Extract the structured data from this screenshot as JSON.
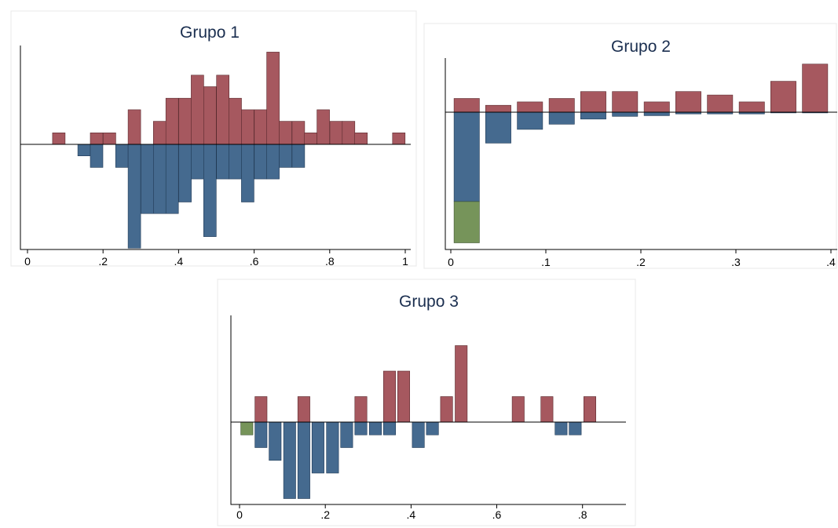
{
  "chart_data": [
    {
      "type": "bar",
      "title": "Grupo 1",
      "xlabel": "",
      "ylabel": "",
      "xlim": [
        0,
        1
      ],
      "x_ticks": [
        "0",
        ".2",
        ".4",
        ".6",
        ".8",
        "1"
      ],
      "x_tick_values": [
        0,
        0.2,
        0.4,
        0.6,
        0.8,
        1
      ],
      "bin_width": 0.0333,
      "colors": {
        "above": "#a6585f",
        "below": "#456a8f",
        "extra": "#76945a"
      },
      "above": [
        {
          "x": 0.083,
          "v": 1
        },
        {
          "x": 0.183,
          "v": 1
        },
        {
          "x": 0.217,
          "v": 1
        },
        {
          "x": 0.283,
          "v": 3
        },
        {
          "x": 0.35,
          "v": 2
        },
        {
          "x": 0.383,
          "v": 4
        },
        {
          "x": 0.417,
          "v": 4
        },
        {
          "x": 0.45,
          "v": 6
        },
        {
          "x": 0.483,
          "v": 5
        },
        {
          "x": 0.517,
          "v": 6
        },
        {
          "x": 0.55,
          "v": 4
        },
        {
          "x": 0.583,
          "v": 3
        },
        {
          "x": 0.617,
          "v": 3
        },
        {
          "x": 0.65,
          "v": 8
        },
        {
          "x": 0.683,
          "v": 2
        },
        {
          "x": 0.717,
          "v": 2
        },
        {
          "x": 0.75,
          "v": 1
        },
        {
          "x": 0.783,
          "v": 3
        },
        {
          "x": 0.817,
          "v": 2
        },
        {
          "x": 0.85,
          "v": 2
        },
        {
          "x": 0.883,
          "v": 1
        },
        {
          "x": 0.983,
          "v": 1
        }
      ],
      "below": [
        {
          "x": 0.15,
          "v": 1
        },
        {
          "x": 0.183,
          "v": 2
        },
        {
          "x": 0.25,
          "v": 2
        },
        {
          "x": 0.283,
          "v": 9
        },
        {
          "x": 0.317,
          "v": 6
        },
        {
          "x": 0.35,
          "v": 6
        },
        {
          "x": 0.383,
          "v": 6
        },
        {
          "x": 0.417,
          "v": 5
        },
        {
          "x": 0.45,
          "v": 3
        },
        {
          "x": 0.483,
          "v": 8
        },
        {
          "x": 0.517,
          "v": 3
        },
        {
          "x": 0.55,
          "v": 3
        },
        {
          "x": 0.583,
          "v": 5
        },
        {
          "x": 0.617,
          "v": 3
        },
        {
          "x": 0.65,
          "v": 3
        },
        {
          "x": 0.683,
          "v": 2
        },
        {
          "x": 0.717,
          "v": 2
        }
      ],
      "extra": []
    },
    {
      "type": "bar",
      "title": "Grupo 2",
      "xlabel": "",
      "ylabel": "",
      "xlim": [
        0,
        0.4
      ],
      "x_ticks": [
        "0",
        ".1",
        ".2",
        ".3",
        ".4"
      ],
      "x_tick_values": [
        0,
        0.1,
        0.2,
        0.3,
        0.4
      ],
      "bin_width": 0.0267,
      "colors": {
        "above": "#a6585f",
        "below": "#456a8f",
        "extra": "#76945a"
      },
      "above": [
        {
          "x": 0.0167,
          "v": 4
        },
        {
          "x": 0.05,
          "v": 2
        },
        {
          "x": 0.0833,
          "v": 3
        },
        {
          "x": 0.1167,
          "v": 4
        },
        {
          "x": 0.15,
          "v": 6
        },
        {
          "x": 0.1833,
          "v": 6
        },
        {
          "x": 0.2167,
          "v": 3
        },
        {
          "x": 0.25,
          "v": 6
        },
        {
          "x": 0.2833,
          "v": 5
        },
        {
          "x": 0.3167,
          "v": 3
        },
        {
          "x": 0.35,
          "v": 9
        },
        {
          "x": 0.3833,
          "v": 14
        }
      ],
      "below": [
        {
          "x": 0.0167,
          "v": 26
        },
        {
          "x": 0.05,
          "v": 9
        },
        {
          "x": 0.0833,
          "v": 5
        },
        {
          "x": 0.1167,
          "v": 3.5
        },
        {
          "x": 0.15,
          "v": 2
        },
        {
          "x": 0.1833,
          "v": 1.2
        },
        {
          "x": 0.2167,
          "v": 1
        },
        {
          "x": 0.25,
          "v": 0.5
        },
        {
          "x": 0.2833,
          "v": 0.5
        },
        {
          "x": 0.3167,
          "v": 0.5
        },
        {
          "x": 0.35,
          "v": 0.2
        },
        {
          "x": 0.3833,
          "v": 0.2
        }
      ],
      "extra": [
        {
          "x": 0.0167,
          "from": 26,
          "to": 38
        }
      ]
    },
    {
      "type": "bar",
      "title": "Grupo 3",
      "xlabel": "",
      "ylabel": "",
      "xlim": [
        0,
        0.85
      ],
      "x_ticks": [
        "0",
        ".2",
        ".4",
        ".6",
        ".8"
      ],
      "x_tick_values": [
        0,
        0.2,
        0.4,
        0.6,
        0.8
      ],
      "bin_width": 0.0283,
      "colors": {
        "above": "#a6585f",
        "below": "#456a8f",
        "extra": "#76945a"
      },
      "above": [
        {
          "x": 0.05,
          "v": 1
        },
        {
          "x": 0.15,
          "v": 1
        },
        {
          "x": 0.283,
          "v": 1
        },
        {
          "x": 0.35,
          "v": 2
        },
        {
          "x": 0.383,
          "v": 2
        },
        {
          "x": 0.483,
          "v": 1
        },
        {
          "x": 0.517,
          "v": 3
        },
        {
          "x": 0.65,
          "v": 1
        },
        {
          "x": 0.717,
          "v": 1
        },
        {
          "x": 0.817,
          "v": 1
        }
      ],
      "below": [
        {
          "x": 0.05,
          "v": 1
        },
        {
          "x": 0.083,
          "v": 1.5
        },
        {
          "x": 0.117,
          "v": 3
        },
        {
          "x": 0.15,
          "v": 3
        },
        {
          "x": 0.183,
          "v": 2
        },
        {
          "x": 0.217,
          "v": 2
        },
        {
          "x": 0.25,
          "v": 1
        },
        {
          "x": 0.283,
          "v": 0.5
        },
        {
          "x": 0.317,
          "v": 0.5
        },
        {
          "x": 0.35,
          "v": 0.5
        },
        {
          "x": 0.417,
          "v": 1
        },
        {
          "x": 0.45,
          "v": 0.5
        },
        {
          "x": 0.75,
          "v": 0.5
        },
        {
          "x": 0.783,
          "v": 0.5
        }
      ],
      "extra": [
        {
          "x": 0.017,
          "from": 0,
          "to": 0.5
        }
      ]
    }
  ]
}
